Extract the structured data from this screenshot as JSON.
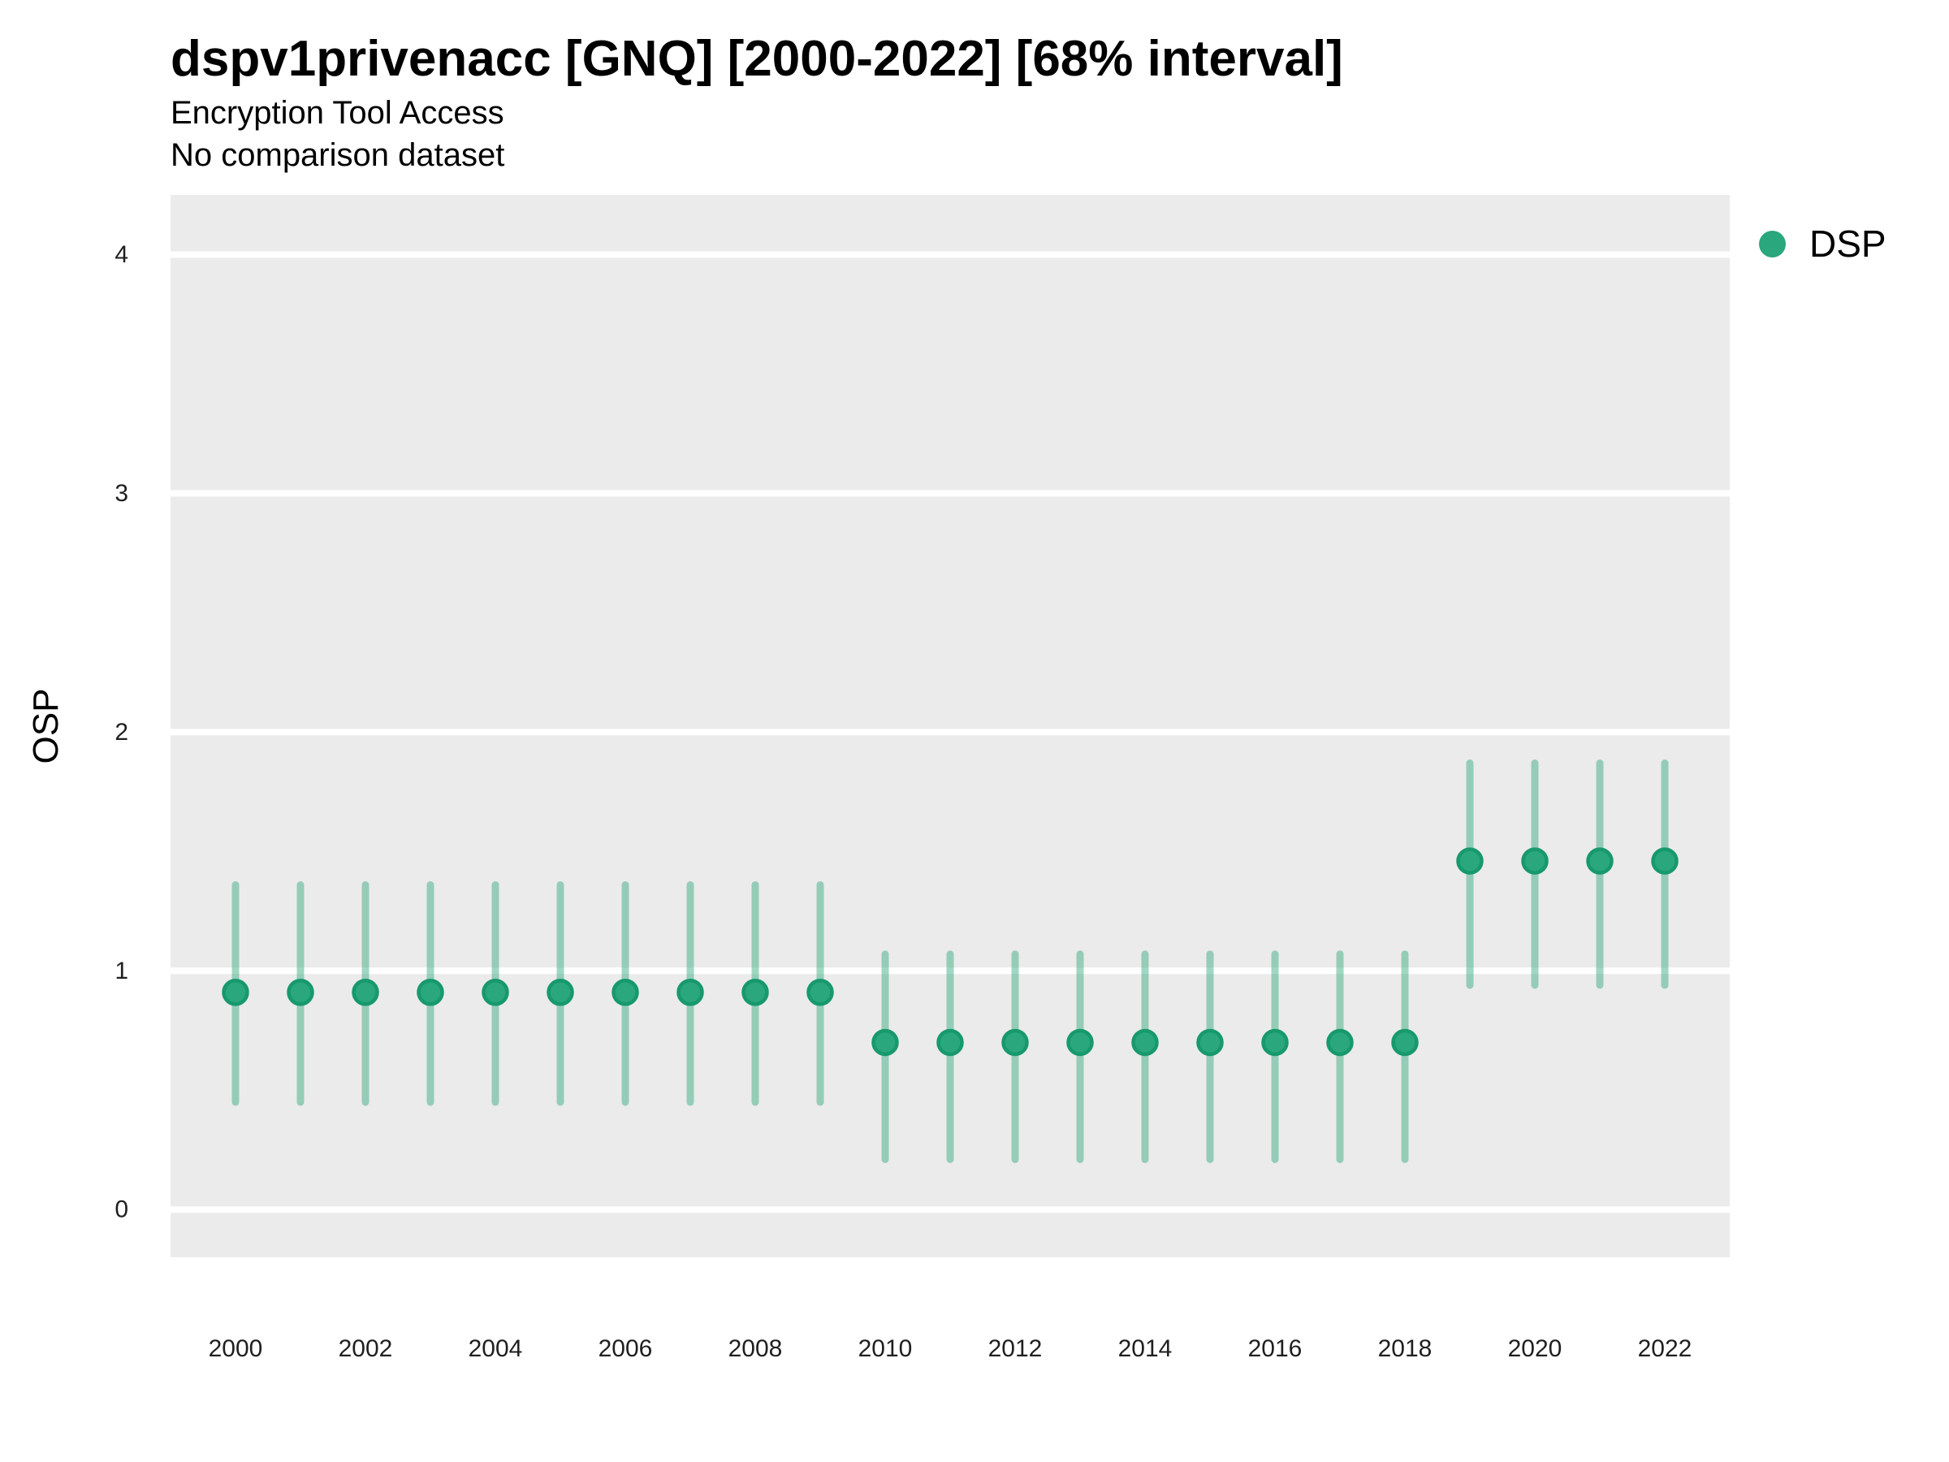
{
  "header": {
    "title": "dspv1privenacc [GNQ] [2000-2022] [68% interval]",
    "subtitle": "Encryption Tool Access",
    "note": "No comparison dataset"
  },
  "legend": {
    "position": "top-right",
    "items": [
      {
        "label": "DSP",
        "color": "#2aa77d"
      }
    ]
  },
  "colors": {
    "marker_fill": "#2aa77d",
    "marker_stroke": "#17996c",
    "interval_line": "rgba(45,167,123,0.45)",
    "panel_background": "#ebebeb",
    "gridline": "#ffffff",
    "text": "#000000",
    "tick_text": "#1f1f1f"
  },
  "chart_data": {
    "type": "scatter",
    "subtype": "pointrange",
    "title": "dspv1privenacc [GNQ] [2000-2022] [68% interval]",
    "subtitle": "Encryption Tool Access",
    "note": "No comparison dataset",
    "interval": "68%",
    "xlabel": "",
    "ylabel": "OSP",
    "x": [
      2000,
      2001,
      2002,
      2003,
      2004,
      2005,
      2006,
      2007,
      2008,
      2009,
      2010,
      2011,
      2012,
      2013,
      2014,
      2015,
      2016,
      2017,
      2018,
      2019,
      2020,
      2021,
      2022
    ],
    "series": [
      {
        "name": "DSP",
        "color": "#2aa77d",
        "values": [
          0.91,
          0.91,
          0.91,
          0.91,
          0.91,
          0.91,
          0.91,
          0.91,
          0.91,
          0.91,
          0.7,
          0.7,
          0.7,
          0.7,
          0.7,
          0.7,
          0.7,
          0.7,
          0.7,
          1.46,
          1.46,
          1.46,
          1.46
        ],
        "low": [
          0.45,
          0.45,
          0.45,
          0.45,
          0.45,
          0.45,
          0.45,
          0.45,
          0.45,
          0.45,
          0.21,
          0.21,
          0.21,
          0.21,
          0.21,
          0.21,
          0.21,
          0.21,
          0.21,
          0.94,
          0.94,
          0.94,
          0.94
        ],
        "high": [
          1.36,
          1.36,
          1.36,
          1.36,
          1.36,
          1.36,
          1.36,
          1.36,
          1.36,
          1.36,
          1.07,
          1.07,
          1.07,
          1.07,
          1.07,
          1.07,
          1.07,
          1.07,
          1.07,
          1.87,
          1.87,
          1.87,
          1.87
        ]
      }
    ],
    "ylim": [
      -0.2,
      4.25
    ],
    "yticks": [
      0,
      1,
      2,
      3,
      4
    ],
    "xticks": [
      2000,
      2002,
      2004,
      2006,
      2008,
      2010,
      2012,
      2014,
      2016,
      2018,
      2020,
      2022
    ],
    "grid": "horizontal major white gridlines on gray panel, no minor gridlines",
    "legend_position": "top-right"
  }
}
